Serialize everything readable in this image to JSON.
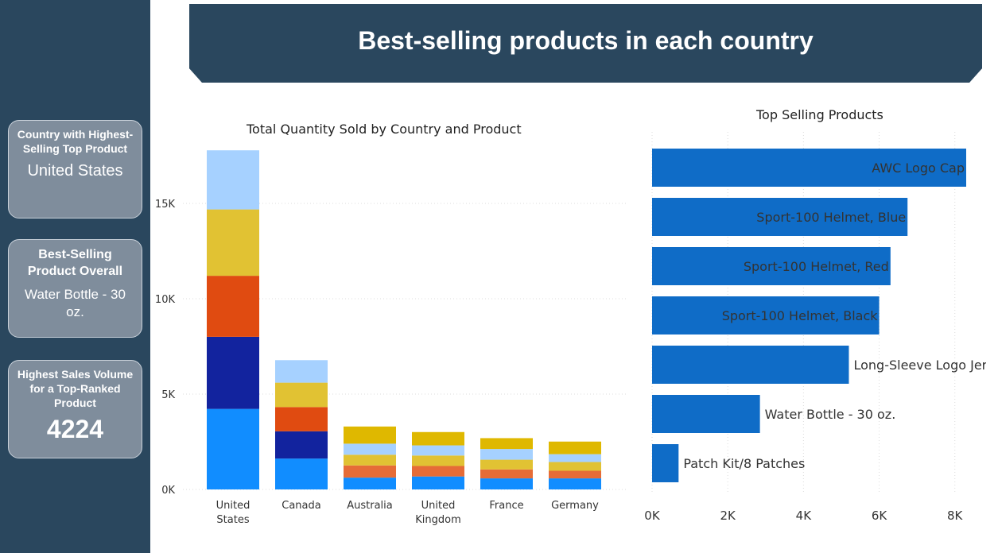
{
  "header": {
    "title": "Best-selling products in each country"
  },
  "cards": [
    {
      "label": "Country with Highest-Selling Top Product",
      "value": "United States"
    },
    {
      "label": "Best-Selling Product Overall",
      "value": "Water Bottle - 30 oz."
    },
    {
      "label": "Highest Sales Volume for a Top-Ranked Product",
      "value": "4224"
    }
  ],
  "chart_data": [
    {
      "type": "bar",
      "stacked": true,
      "title": "Total Quantity Sold by Country and Product",
      "categories": [
        "United States",
        "Canada",
        "Australia",
        "United Kingdom",
        "France",
        "Germany"
      ],
      "series": [
        {
          "color": "#118dff",
          "values": [
            4224,
            1620,
            620,
            680,
            580,
            580
          ]
        },
        {
          "color": "#12239e",
          "values": [
            3780,
            1430,
            0,
            0,
            0,
            0
          ]
        },
        {
          "color": "#e04b11",
          "values": [
            3200,
            1270,
            0,
            0,
            0,
            0
          ]
        },
        {
          "color": "#e66c37",
          "values": [
            0,
            0,
            640,
            550,
            470,
            400
          ]
        },
        {
          "color": "#e1c233",
          "values": [
            3480,
            1280,
            560,
            550,
            510,
            460
          ]
        },
        {
          "color": "#a6d1ff",
          "values": [
            3100,
            1180,
            580,
            530,
            560,
            410
          ]
        },
        {
          "color": "#dfb800",
          "values": [
            0,
            0,
            900,
            700,
            570,
            660
          ]
        }
      ],
      "yticks": [
        "0K",
        "5K",
        "10K",
        "15K"
      ],
      "ylim": [
        0,
        18000
      ],
      "grid": true
    },
    {
      "type": "bar",
      "orientation": "horizontal",
      "title": "Top Selling Products",
      "categories": [
        "AWC Logo Cap",
        "Sport-100 Helmet, Blue",
        "Sport-100 Helmet, Red",
        "Sport-100 Helmet, Black",
        "Long-Sleeve Logo Jersey, L",
        "Water Bottle - 30 oz.",
        "Patch Kit/8 Patches"
      ],
      "values": [
        8300,
        6750,
        6300,
        6000,
        5200,
        2850,
        700
      ],
      "xticks": [
        "0K",
        "2K",
        "4K",
        "6K",
        "8K"
      ],
      "xlim": [
        0,
        8300
      ],
      "color": "#0f6cc7",
      "grid": true
    }
  ]
}
